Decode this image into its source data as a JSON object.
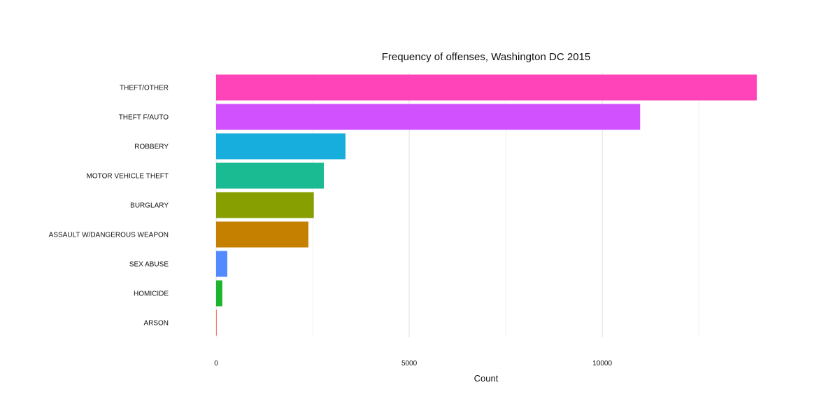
{
  "chart_data": {
    "type": "bar",
    "orientation": "horizontal",
    "title": "Frequency of offenses, Washington DC 2015",
    "xlabel": "Count",
    "ylabel": "",
    "xlim": [
      0,
      14000
    ],
    "x_ticks": [
      0,
      5000,
      10000
    ],
    "x_tick_labels": [
      "0",
      "5000",
      "10000"
    ],
    "minor_gridlines": [
      2500,
      7500,
      12500
    ],
    "grid": true,
    "legend": "none",
    "categories": [
      "THEFT/OTHER",
      "THEFT F/AUTO",
      "ROBBERY",
      "MOTOR VEHICLE THEFT",
      "BURGLARY",
      "ASSAULT W/DANGEROUS WEAPON",
      "SEX ABUSE",
      "HOMICIDE",
      "ARSON"
    ],
    "values": [
      14000,
      10980,
      3350,
      2790,
      2530,
      2390,
      290,
      160,
      5
    ],
    "colors": [
      "#FF43B8",
      "#D251FF",
      "#17AEDE",
      "#1ABA93",
      "#879F00",
      "#C68000",
      "#548AFF",
      "#1CB42B",
      "#F8766D"
    ]
  }
}
